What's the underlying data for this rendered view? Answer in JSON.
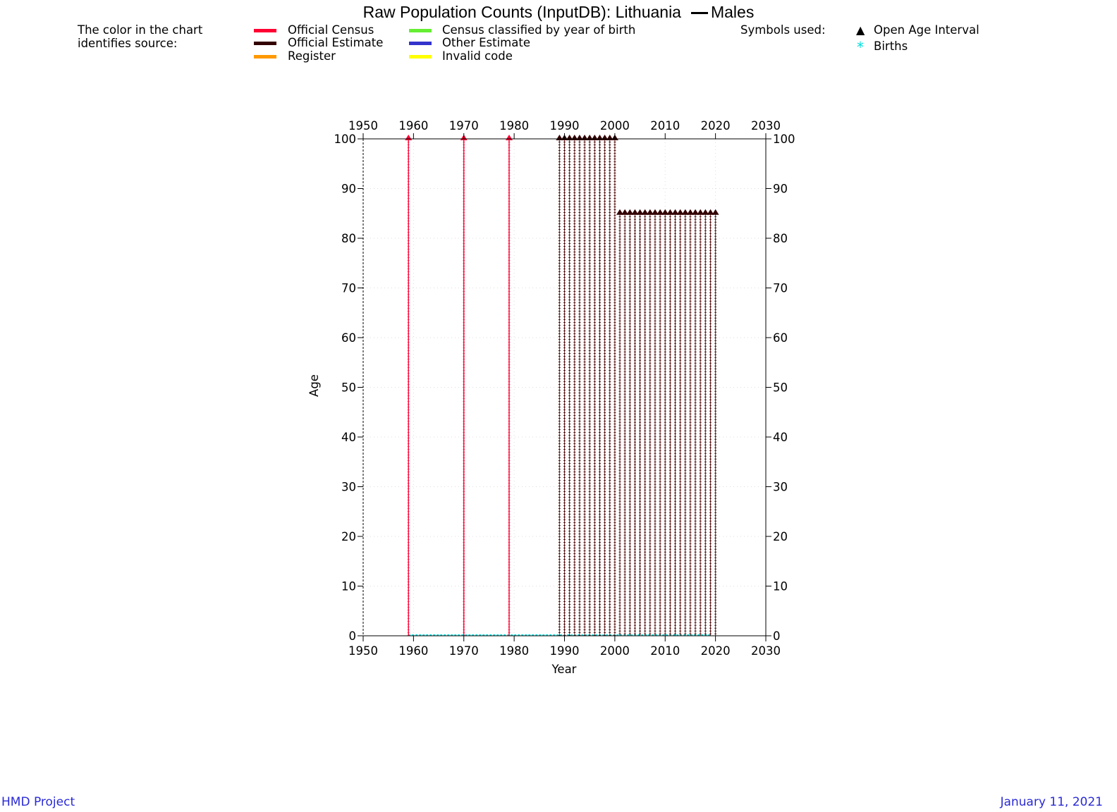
{
  "title": "Raw Population Counts (InputDB): Lithuania",
  "title_series": "Males",
  "legend": {
    "intro_line1": "The color in the chart",
    "intro_line2": "identifies source:",
    "sources": [
      {
        "label": "Official Census",
        "color": "#ff0033"
      },
      {
        "label": "Official Estimate",
        "color": "#330000"
      },
      {
        "label": "Register",
        "color": "#ff9900"
      },
      {
        "label": "Census classified by year of birth",
        "color": "#66ee33"
      },
      {
        "label": "Other Estimate",
        "color": "#3333cc"
      },
      {
        "label": "Invalid code",
        "color": "#ffff00"
      }
    ],
    "symbols_title": "Symbols used:",
    "symbols": [
      {
        "label": "Open Age Interval",
        "icon": "triangle-icon",
        "glyph": "▲",
        "color": "#000000"
      },
      {
        "label": "Births",
        "icon": "asterisk-icon",
        "glyph": "*",
        "color": "#00dddd"
      }
    ]
  },
  "footer": {
    "left": "HMD Project",
    "right": "January 11, 2021"
  },
  "chart_data": {
    "type": "scatter",
    "xlabel": "Year",
    "ylabel": "Age",
    "xlim": [
      1950,
      2030
    ],
    "ylim": [
      0,
      100
    ],
    "x_ticks": [
      "1950",
      "1960",
      "1970",
      "1980",
      "1990",
      "2000",
      "2010",
      "2020",
      "2030"
    ],
    "y_ticks": [
      "0",
      "10",
      "20",
      "30",
      "40",
      "50",
      "60",
      "70",
      "80",
      "90",
      "100"
    ],
    "series": [
      {
        "name": "Official Census",
        "color": "#ff0033",
        "open_age_interval": 100,
        "years": [
          1959,
          1970,
          1979
        ]
      },
      {
        "name": "Official Estimate",
        "color": "#330000",
        "open_age_interval": 100,
        "years": [
          1989,
          1990,
          1991,
          1992,
          1993,
          1994,
          1995,
          1996,
          1997,
          1998,
          1999,
          2000
        ]
      },
      {
        "name": "Official Estimate",
        "color": "#330000",
        "open_age_interval": 85,
        "years": [
          2001,
          2002,
          2003,
          2004,
          2005,
          2006,
          2007,
          2008,
          2009,
          2010,
          2011,
          2012,
          2013,
          2014,
          2015,
          2016,
          2017,
          2018,
          2019,
          2020
        ]
      }
    ],
    "births": {
      "name": "Births",
      "color": "#00dddd",
      "from": 1959,
      "to": 2019
    }
  }
}
